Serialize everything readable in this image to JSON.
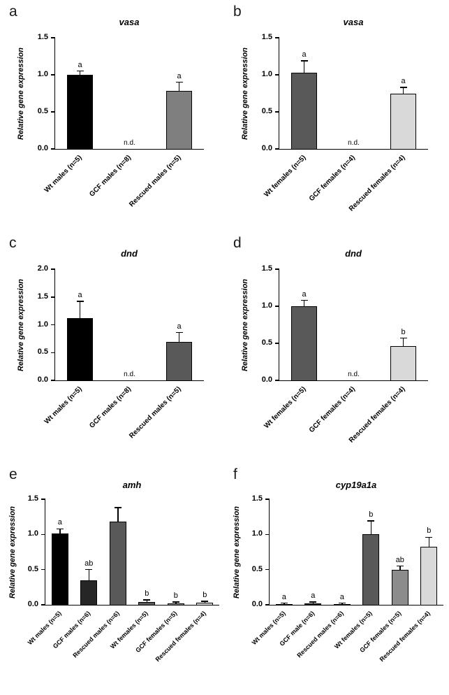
{
  "figure": {
    "background": "#ffffff",
    "axis_color": "#000000"
  },
  "chart_data": [
    {
      "panel": "a",
      "type": "bar",
      "title": "vasa",
      "ylabel": "Relative gene expression",
      "ylim": [
        0,
        1.5
      ],
      "yticks": [
        0.0,
        0.5,
        1.0,
        1.5
      ],
      "categories": [
        "Wt males (n=5)",
        "GCF males (n=8)",
        "Rescued males (n=5)"
      ],
      "values": [
        1.0,
        null,
        0.78
      ],
      "errors": [
        0.05,
        null,
        0.12
      ],
      "letters": [
        "a",
        "",
        "a"
      ],
      "nd_text": "n.d.",
      "colors": [
        "#000000",
        null,
        "#7f7f7f"
      ]
    },
    {
      "panel": "b",
      "type": "bar",
      "title": "vasa",
      "ylabel": "Relative gene expression",
      "ylim": [
        0,
        1.5
      ],
      "yticks": [
        0.0,
        0.5,
        1.0,
        1.5
      ],
      "categories": [
        "Wt females (n=5)",
        "GCF females (n=4)",
        "Rescued females (n=4)"
      ],
      "values": [
        1.03,
        null,
        0.75
      ],
      "errors": [
        0.16,
        null,
        0.08
      ],
      "letters": [
        "a",
        "",
        "a"
      ],
      "nd_text": "n.d.",
      "colors": [
        "#595959",
        null,
        "#d9d9d9"
      ]
    },
    {
      "panel": "c",
      "type": "bar",
      "title": "dnd",
      "ylabel": "Relative gene expression",
      "ylim": [
        0,
        2.0
      ],
      "yticks": [
        0.0,
        0.5,
        1.0,
        1.5,
        2.0
      ],
      "categories": [
        "Wt males (n=5)",
        "GCF males (n=8)",
        "Rescued males (n=5)"
      ],
      "values": [
        1.12,
        null,
        0.69
      ],
      "errors": [
        0.3,
        null,
        0.17
      ],
      "letters": [
        "a",
        "",
        "a"
      ],
      "nd_text": "n.d.",
      "colors": [
        "#000000",
        null,
        "#595959"
      ]
    },
    {
      "panel": "d",
      "type": "bar",
      "title": "dnd",
      "ylabel": "Relative gene expression",
      "ylim": [
        0,
        1.5
      ],
      "yticks": [
        0.0,
        0.5,
        1.0,
        1.5
      ],
      "categories": [
        "Wt females (n=5)",
        "GCF females (n=4)",
        "Rescued females (n=4)"
      ],
      "values": [
        1.0,
        null,
        0.46
      ],
      "errors": [
        0.08,
        null,
        0.11
      ],
      "letters": [
        "a",
        "",
        "b"
      ],
      "nd_text": "n.d.",
      "colors": [
        "#595959",
        null,
        "#d9d9d9"
      ]
    },
    {
      "panel": "e",
      "type": "bar",
      "title": "amh",
      "ylabel": "Relative gene expression",
      "ylim": [
        0,
        1.5
      ],
      "yticks": [
        0.0,
        0.5,
        1.0,
        1.5
      ],
      "categories": [
        "Wt males (n=5)",
        "GCF males (n=6)",
        "Rescued males (n=6)",
        "Wt females (n=5)",
        "GCF females (n=5)",
        "Rescued females (n=4)"
      ],
      "values": [
        1.01,
        0.35,
        1.18,
        0.04,
        0.02,
        0.03
      ],
      "errors": [
        0.07,
        0.15,
        0.2,
        0.03,
        0.02,
        0.02
      ],
      "letters": [
        "a",
        "ab",
        "",
        "b",
        "b",
        "b"
      ],
      "nd_text": "n.d.",
      "colors": [
        "#000000",
        "#262626",
        "#595959",
        "#595959",
        "#8c8c8c",
        "#d9d9d9"
      ]
    },
    {
      "panel": "f",
      "type": "bar",
      "title": "cyp19a1a",
      "ylabel": "Relative gene expression",
      "ylim": [
        0,
        1.5
      ],
      "yticks": [
        0.0,
        0.5,
        1.0,
        1.5
      ],
      "categories": [
        "Wt males (n=5)",
        "GCF male (n=6)",
        "Rescued males (n=6)",
        "Wt females (n=5)",
        "GCF females (n=5)",
        "Rescued females (n=4)"
      ],
      "values": [
        0.01,
        0.02,
        0.01,
        1.0,
        0.5,
        0.82
      ],
      "errors": [
        0.01,
        0.02,
        0.01,
        0.19,
        0.05,
        0.14
      ],
      "letters": [
        "a",
        "a",
        "a",
        "b",
        "ab",
        "b"
      ],
      "nd_text": "n.d.",
      "colors": [
        "#000000",
        "#262626",
        "#595959",
        "#595959",
        "#8c8c8c",
        "#d9d9d9"
      ]
    }
  ]
}
